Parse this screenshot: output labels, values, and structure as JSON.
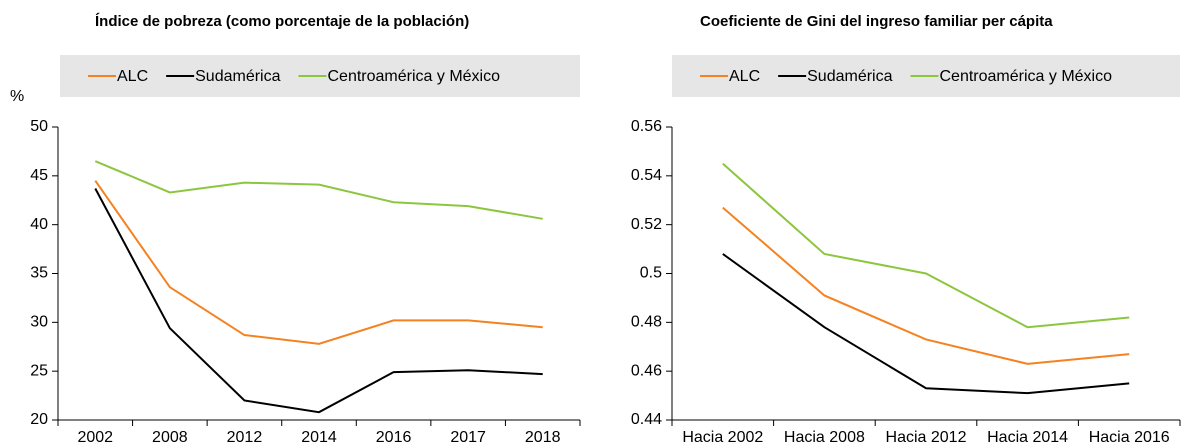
{
  "chart_data": [
    {
      "type": "line",
      "title": "Índice de pobreza (como porcentaje de la población)",
      "y_unit": "%",
      "categories": [
        "2002",
        "2008",
        "2012",
        "2014",
        "2016",
        "2017",
        "2018"
      ],
      "series": [
        {
          "name": "ALC",
          "color": "#f58220",
          "values": [
            44.5,
            33.6,
            28.7,
            27.8,
            30.2,
            30.2,
            29.5
          ]
        },
        {
          "name": "Sudamérica",
          "color": "#000000",
          "values": [
            43.7,
            29.4,
            22.0,
            20.8,
            24.9,
            25.1,
            24.7
          ]
        },
        {
          "name": "Centroamérica y México",
          "color": "#8cc63f",
          "values": [
            46.5,
            43.3,
            44.3,
            44.1,
            42.3,
            41.9,
            40.6
          ]
        }
      ],
      "ylim": [
        20,
        50
      ],
      "yticks": [
        20,
        25,
        30,
        35,
        40,
        45,
        50
      ]
    },
    {
      "type": "line",
      "title": "Coeficiente de Gini del ingreso familiar per cápita",
      "categories": [
        "Hacia 2002",
        "Hacia 2008",
        "Hacia 2012",
        "Hacia 2014",
        "Hacia 2016"
      ],
      "series": [
        {
          "name": "ALC",
          "color": "#f58220",
          "values": [
            0.527,
            0.491,
            0.473,
            0.463,
            0.467
          ]
        },
        {
          "name": "Sudamérica",
          "color": "#000000",
          "values": [
            0.508,
            0.478,
            0.453,
            0.451,
            0.455
          ]
        },
        {
          "name": "Centroamérica y México",
          "color": "#8cc63f",
          "values": [
            0.545,
            0.508,
            0.5,
            0.478,
            0.482
          ]
        }
      ],
      "ylim": [
        0.44,
        0.56
      ],
      "yticks": [
        0.44,
        0.46,
        0.48,
        0.5,
        0.52,
        0.54,
        0.56
      ]
    }
  ]
}
